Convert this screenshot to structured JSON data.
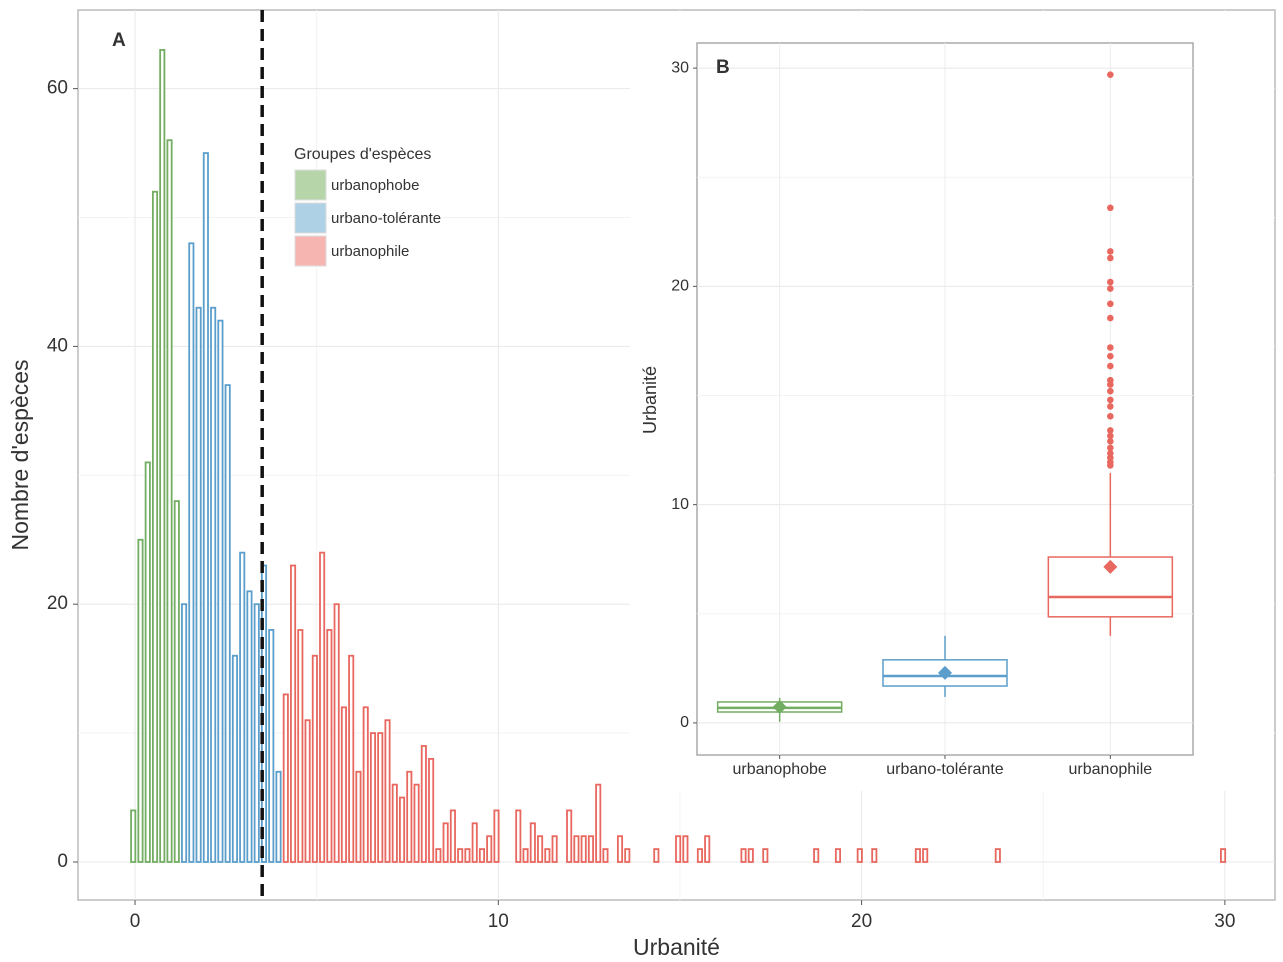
{
  "chart_data": [
    {
      "type": "histogram",
      "label": "A",
      "xlabel": "Urbanité",
      "ylabel": "Nombre d'espèces",
      "xlim": [
        -1.57,
        31.38
      ],
      "ylim": [
        -2.95,
        66.1
      ],
      "xticks": [
        0,
        10,
        20,
        30
      ],
      "yticks": [
        0,
        20,
        40,
        60
      ],
      "xminor": [
        5,
        15,
        25
      ],
      "yminor": [
        10,
        30,
        50
      ],
      "grid": true,
      "threshold": 3.5,
      "legend_title": "Groupes d'espèces",
      "series": [
        {
          "name": "urbanophobe",
          "color": "#72ad62",
          "legend_color": "#b6d6aa",
          "bins": [
            -0.15,
            0.05,
            0.25,
            0.45,
            0.65,
            0.85,
            1.05,
            1.25
          ],
          "values": [
            4,
            25,
            31,
            52,
            63,
            56,
            28
          ]
        },
        {
          "name": "urbano-tolérante",
          "color": "#5b9ecb",
          "legend_color": "#aed1e6",
          "bins": [
            1.25,
            1.45,
            1.65,
            1.85,
            2.05,
            2.25,
            2.45,
            2.65,
            2.85,
            3.05,
            3.25,
            3.45,
            3.65,
            3.85,
            4.05
          ],
          "values": [
            20,
            48,
            43,
            55,
            43,
            42,
            37,
            16,
            24,
            21,
            20,
            23,
            18,
            7
          ]
        },
        {
          "name": "urbanophile",
          "color": "#e8675f",
          "legend_color": "#f6b5b0",
          "bins": [
            4.05,
            4.25,
            4.45,
            4.65,
            4.85,
            5.05,
            5.25,
            5.45,
            5.65,
            5.85,
            6.05,
            6.25,
            6.45,
            6.65,
            6.85,
            7.05,
            7.25,
            7.45,
            7.65,
            7.85,
            8.05,
            8.25,
            8.45,
            8.65,
            8.85,
            9.05,
            9.25,
            9.45,
            9.65,
            9.85,
            10.05,
            10.25,
            10.45,
            10.65,
            10.85,
            11.05,
            11.25,
            11.45,
            11.65,
            11.85,
            12.05,
            12.25,
            12.45,
            12.65,
            12.85,
            13.05,
            13.25,
            13.45,
            13.65,
            13.85,
            14.05,
            14.25,
            14.45,
            14.65,
            14.85,
            15.05,
            15.25,
            15.45,
            15.65,
            15.85,
            16.05,
            16.25,
            16.45,
            16.65,
            16.85,
            17.05,
            17.25,
            17.45,
            17.65,
            17.85,
            18.05,
            18.25,
            18.45,
            18.65,
            18.85,
            19.05,
            19.25,
            19.45,
            19.65,
            19.85,
            20.05,
            20.25,
            20.45,
            20.65,
            20.85,
            21.05,
            21.25,
            21.45,
            21.65,
            21.85,
            22.05,
            22.25,
            22.45,
            22.65,
            22.85,
            23.05,
            23.25,
            23.45,
            23.65,
            23.85,
            24.05,
            24.25,
            24.45,
            24.65,
            24.85,
            25.05,
            25.25,
            25.45,
            25.65,
            25.85,
            26.05,
            26.25,
            26.45,
            26.65,
            26.85,
            27.05,
            27.25,
            27.45,
            27.65,
            27.85,
            28.05,
            28.25,
            28.45,
            28.65,
            28.85,
            29.05,
            29.25,
            29.45,
            29.65,
            29.85,
            30.05
          ],
          "values": [
            13,
            23,
            18,
            11,
            16,
            24,
            18,
            20,
            12,
            16,
            7,
            12,
            10,
            10,
            11,
            6,
            5,
            7,
            6,
            9,
            8,
            1,
            3,
            4,
            1,
            1,
            3,
            1,
            2,
            4,
            0,
            0,
            4,
            1,
            3,
            2,
            1,
            2,
            0,
            4,
            2,
            2,
            2,
            6,
            1,
            0,
            2,
            1,
            0,
            0,
            0,
            1,
            0,
            0,
            2,
            2,
            0,
            1,
            2,
            0,
            0,
            0,
            0,
            1,
            1,
            0,
            1,
            0,
            0,
            0,
            0,
            0,
            0,
            1,
            0,
            0,
            1,
            0,
            0,
            1,
            0,
            1,
            0,
            0,
            0,
            0,
            0,
            1,
            1,
            0,
            0,
            0,
            0,
            0,
            0,
            0,
            0,
            0,
            1,
            0,
            0,
            0,
            0,
            0,
            0,
            0,
            0,
            0,
            0,
            0,
            0,
            0,
            0,
            0,
            0,
            0,
            0,
            0,
            0,
            0,
            0,
            0,
            0,
            0,
            0,
            0,
            0,
            0,
            0,
            1
          ]
        }
      ]
    },
    {
      "type": "box",
      "label": "B",
      "ylabel": "Urbanité",
      "ylim": [
        -1.47,
        31.15
      ],
      "yticks": [
        0,
        10,
        20,
        30
      ],
      "yminor": [
        5,
        15,
        25
      ],
      "grid": true,
      "categories": [
        "urbanophobe",
        "urbano-tolérante",
        "urbanophile"
      ],
      "colors": [
        "#72ad62",
        "#5b9ecb",
        "#e8675f"
      ],
      "boxes": [
        {
          "low": 0.05,
          "q1": 0.5,
          "median": 0.69,
          "q3": 0.96,
          "high": 1.15,
          "mean": 0.73,
          "outliers": []
        },
        {
          "low": 1.19,
          "q1": 1.69,
          "median": 2.15,
          "q3": 2.89,
          "high": 3.99,
          "mean": 2.29,
          "outliers": []
        },
        {
          "low": 3.99,
          "q1": 4.86,
          "median": 5.77,
          "q3": 7.6,
          "high": 11.45,
          "mean": 7.15,
          "outliers": [
            29.7,
            23.6,
            21.6,
            21.3,
            20.2,
            19.9,
            19.2,
            18.55,
            17.2,
            16.8,
            16.35,
            15.7,
            15.5,
            15.2,
            14.8,
            14.5,
            14.05,
            13.4,
            13.15,
            12.9,
            12.6,
            12.35,
            12.15,
            11.95,
            11.8
          ]
        }
      ]
    }
  ]
}
